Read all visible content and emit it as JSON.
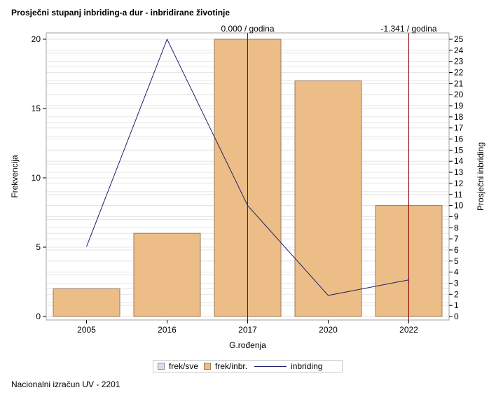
{
  "title": "Prosječni stupanj inbriding-a dur - inbridirane životinje",
  "footer": "Nacionalni izračun UV - 2201",
  "chart_data": {
    "type": "bar",
    "categories": [
      "2005",
      "2016",
      "2017",
      "2020",
      "2022"
    ],
    "series": [
      {
        "name": "frek/inbr.",
        "axis": "left",
        "type": "bar",
        "values": [
          2,
          6,
          20,
          17,
          8
        ]
      },
      {
        "name": "inbriding",
        "axis": "right",
        "type": "line",
        "values": [
          6.3,
          25,
          10,
          1.9,
          3.3
        ]
      }
    ],
    "xlabel": "G.rođenja",
    "ylabel": "Frekvencija",
    "y2label": "Prosječni inbriding",
    "ylim": [
      0,
      20
    ],
    "y2lim": [
      0,
      25
    ],
    "yticks": [
      0,
      5,
      10,
      15,
      20
    ],
    "y2ticks": [
      0,
      1,
      2,
      3,
      4,
      5,
      6,
      7,
      8,
      9,
      10,
      11,
      12,
      13,
      14,
      15,
      16,
      17,
      18,
      19,
      20,
      21,
      22,
      23,
      24,
      25
    ],
    "reference_lines": [
      {
        "category": "2017",
        "label": "0.000 / godina"
      },
      {
        "category": "2022",
        "label": "-1.341 / godina"
      }
    ],
    "grid": true,
    "colors": {
      "bar_fill": "#ecbd86",
      "bar_stroke": "#9b7a5a",
      "line": "#1f1f6e",
      "ref_line": "#8b0000",
      "grid": "#e6e6e6"
    }
  },
  "legend": {
    "items": [
      {
        "label": "frek/sve"
      },
      {
        "label": "frek/inbr."
      },
      {
        "label": "inbriding"
      }
    ]
  }
}
